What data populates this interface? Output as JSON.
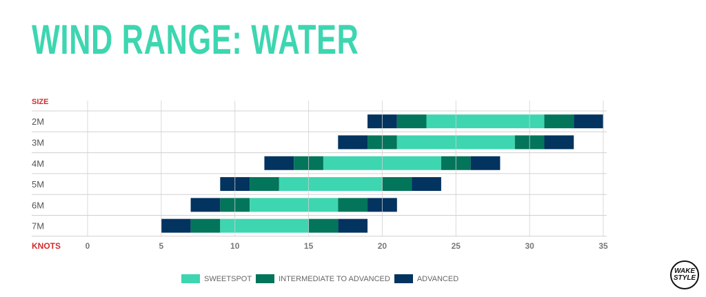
{
  "chart_data": {
    "type": "bar",
    "subtype": "stacked-range-horizontal",
    "title": "WIND RANGE: WATER",
    "ylabel": "SIZE",
    "xlabel": "KNOTS",
    "xlim": [
      0,
      35
    ],
    "xticks": [
      0,
      5,
      10,
      15,
      20,
      25,
      30,
      35
    ],
    "grid": true,
    "legend_placement": "bottom",
    "categories": [
      "2M",
      "3M",
      "4M",
      "5M",
      "6M",
      "7M"
    ],
    "series": [
      {
        "name": "SWEETSPOT",
        "color": "#3dd6b0"
      },
      {
        "name": "INTERMEDIATE TO ADVANCED",
        "color": "#03755a"
      },
      {
        "name": "ADVANCED",
        "color": "#03335f"
      }
    ],
    "ranges": [
      {
        "size": "2M",
        "advanced_low": [
          19,
          21
        ],
        "intermediate_low": [
          21,
          23
        ],
        "sweetspot": [
          23,
          31
        ],
        "intermediate_high": [
          31,
          33
        ],
        "advanced_high": [
          33,
          35
        ]
      },
      {
        "size": "3M",
        "advanced_low": [
          17,
          19
        ],
        "intermediate_low": [
          19,
          21
        ],
        "sweetspot": [
          21,
          29
        ],
        "intermediate_high": [
          29,
          31
        ],
        "advanced_high": [
          31,
          33
        ]
      },
      {
        "size": "4M",
        "advanced_low": [
          12,
          14
        ],
        "intermediate_low": [
          14,
          16
        ],
        "sweetspot": [
          16,
          24
        ],
        "intermediate_high": [
          24,
          26
        ],
        "advanced_high": [
          26,
          28
        ]
      },
      {
        "size": "5M",
        "advanced_low": [
          9,
          11
        ],
        "intermediate_low": [
          11,
          13
        ],
        "sweetspot": [
          13,
          20
        ],
        "intermediate_high": [
          20,
          22
        ],
        "advanced_high": [
          22,
          24
        ]
      },
      {
        "size": "6M",
        "advanced_low": [
          7,
          9
        ],
        "intermediate_low": [
          9,
          11
        ],
        "sweetspot": [
          11,
          17
        ],
        "intermediate_high": [
          17,
          19
        ],
        "advanced_high": [
          19,
          21
        ]
      },
      {
        "size": "7M",
        "advanced_low": [
          5,
          7
        ],
        "intermediate_low": [
          7,
          9
        ],
        "sweetspot": [
          9,
          15
        ],
        "intermediate_high": [
          15,
          17
        ],
        "advanced_high": [
          17,
          19
        ]
      }
    ]
  },
  "logo": {
    "line1": "WAKE",
    "line2": "STYLE"
  },
  "accent_label_color": "#d42a2a"
}
